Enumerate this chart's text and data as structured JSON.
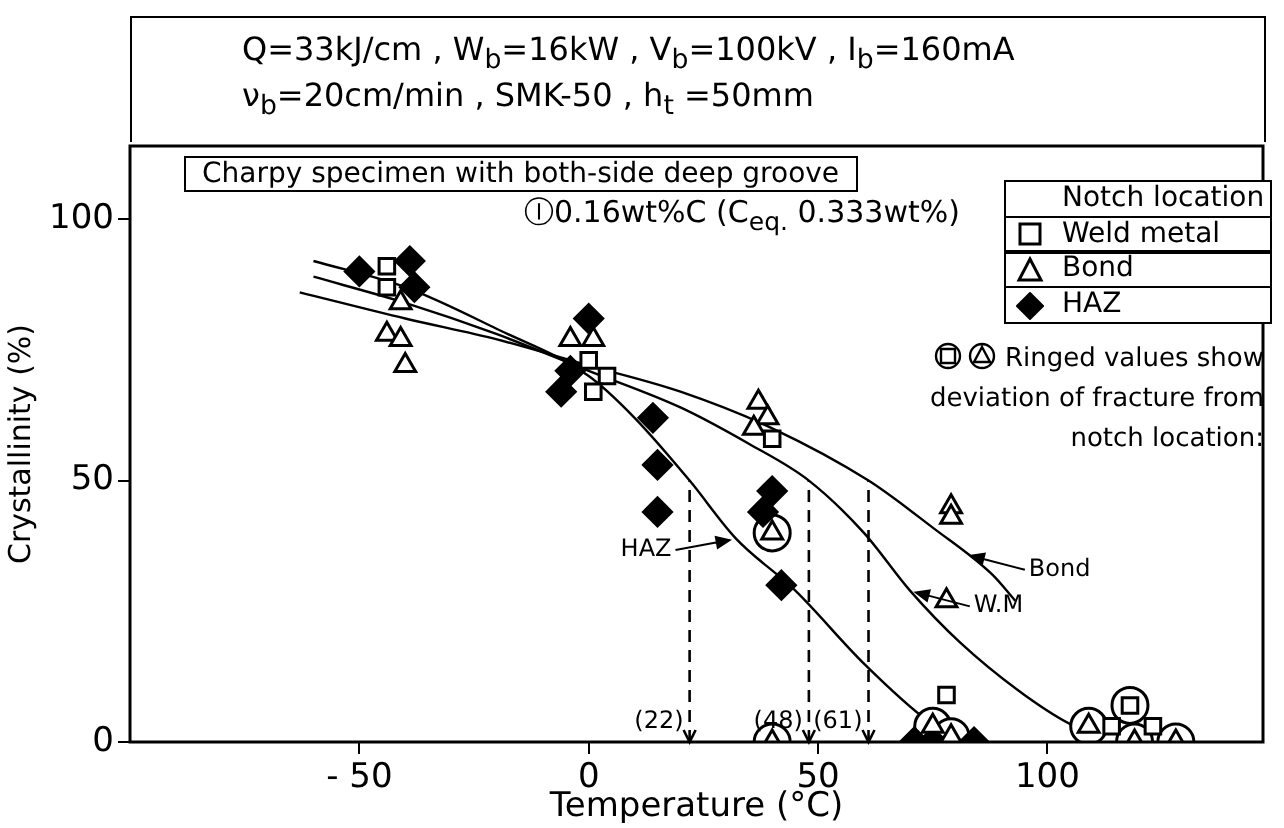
{
  "chart_data": {
    "type": "scatter",
    "title": "Q=33kJ/cm ,  W$_{b}$=16kW ,  V$_{b}$=100kV ,  I$_{b}$=160mA",
    "subtitle": "ν$_{b}$=20cm/min ,  SMK-50 ,  h$_{t}$ =50mm",
    "xlabel": "Temperature (°C)",
    "ylabel": "Crystallinity (%)",
    "legend_title": "Notch location",
    "legend": "top right",
    "xlim": [
      -100,
      147
    ],
    "xticks": [
      -50,
      0,
      50,
      100
    ],
    "ylim": [
      0,
      114
    ],
    "yticks": [
      0,
      50,
      100
    ],
    "grid": false,
    "series": [
      {
        "name": "Weld metal",
        "type": "scatter",
        "marker": "square",
        "color": "#000000",
        "x": [
          -44,
          -44,
          0,
          4,
          1,
          40,
          78,
          114,
          118,
          123
        ],
        "values": [
          91,
          87,
          73,
          70,
          67,
          58,
          9,
          3,
          7,
          3
        ]
      },
      {
        "name": "Bond",
        "type": "scatter",
        "marker": "triangle",
        "color": "#000000",
        "x": [
          -41,
          -44,
          -41,
          -40,
          -4,
          1,
          37,
          39,
          36,
          40,
          79,
          79,
          78,
          75,
          79,
          40,
          109,
          119,
          128
        ],
        "values": [
          84,
          78,
          77,
          72,
          77,
          77,
          65,
          62,
          60,
          40,
          45,
          43,
          27,
          3,
          1,
          0,
          3,
          0,
          0
        ]
      },
      {
        "name": "HAZ",
        "type": "scatter",
        "marker": "diamond",
        "color": "#000000",
        "x": [
          -50,
          -39,
          -38,
          0,
          -4,
          -6,
          14,
          15,
          15,
          40,
          38,
          42,
          71,
          75,
          84
        ],
        "values": [
          90,
          92,
          87,
          81,
          71,
          67,
          62,
          53,
          44,
          48,
          44,
          30,
          0,
          0,
          0
        ]
      },
      {
        "type": "scatter",
        "marker": "circle",
        "color": "#000000",
        "x": [
          40,
          75,
          79,
          40,
          109,
          118,
          119,
          128
        ],
        "values": [
          40,
          3,
          1,
          0,
          3,
          7,
          0,
          0
        ]
      },
      {
        "type": "line",
        "marker": "none",
        "color": "#000000",
        "x": [
          -60,
          -40,
          -20,
          0,
          10,
          22,
          32,
          45,
          60,
          74,
          78
        ],
        "values": [
          92,
          87,
          79,
          70,
          62,
          50,
          39,
          29,
          15,
          4,
          2
        ]
      },
      {
        "type": "line",
        "marker": "none",
        "color": "#000000",
        "x": [
          -60,
          -40,
          -20,
          0,
          20,
          35,
          48,
          60,
          70,
          81,
          95,
          106,
          110
        ],
        "values": [
          89,
          84,
          78,
          71,
          64,
          57,
          50,
          40,
          29,
          19,
          9,
          3,
          2
        ]
      },
      {
        "type": "line",
        "marker": "none",
        "color": "#000000",
        "x": [
          -63,
          -40,
          -20,
          0,
          20,
          40,
          61,
          75,
          88,
          93
        ],
        "values": [
          86,
          81,
          77,
          72,
          67,
          60,
          50,
          41,
          32,
          27
        ]
      }
    ],
    "ref_lines": [
      {
        "axis": "x",
        "value": 22,
        "label": "(22)",
        "line_style": "dashed"
      },
      {
        "axis": "x",
        "value": 48,
        "label": "(48)",
        "line_style": "dashed"
      },
      {
        "axis": "x",
        "value": 61,
        "label": "(61)",
        "line_style": "dashed"
      }
    ],
    "annotations": [
      "Charpy specimen with both-side deep groove",
      "Ⓘ0.16wt%C (C$_{eq.}$ 0.333wt%)",
      "Ringed values show deviation of fracture from notch location:",
      {
        "text": "HAZ",
        "x": 32,
        "y": 39
      },
      {
        "text": "W.M",
        "x": 70,
        "y": 29
      },
      {
        "text": "Bond",
        "x": 82,
        "y": 36
      }
    ]
  }
}
